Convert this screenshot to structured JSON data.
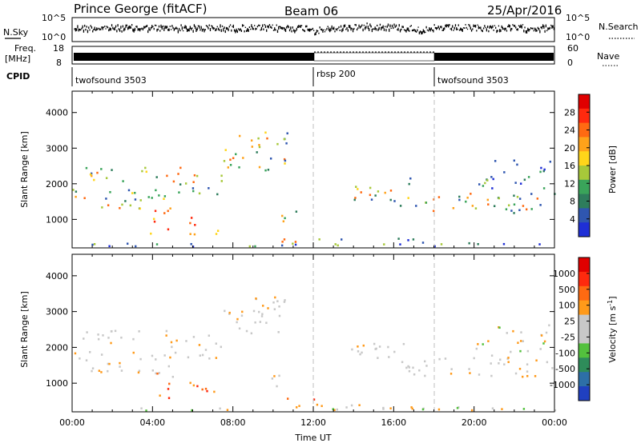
{
  "header": {
    "station": "Prince George (fitACF)",
    "beam": "Beam 06",
    "date": "25/Apr/2016"
  },
  "noise_panel": {
    "left_label": "N.Sky",
    "right_label": "N.Search",
    "ticks": [
      "10^5",
      "10^0"
    ]
  },
  "freq_panel": {
    "left_label_line1": "Freq.",
    "left_label_line2": "[MHz]",
    "left_ticks": [
      "18",
      "8"
    ],
    "right_label": "Nave",
    "right_ticks": [
      "60",
      "0"
    ]
  },
  "cpid_panel": {
    "label": "CPID",
    "segments": [
      {
        "name": "twofsound 3503",
        "start_hour": 0
      },
      {
        "name": "rbsp 200",
        "start_hour": 12
      },
      {
        "name": "twofsound 3503",
        "start_hour": 18
      }
    ]
  },
  "chart_data": [
    {
      "type": "heatmap",
      "quantity": "power",
      "xlabel": "",
      "ylabel": "Slant Range [km]",
      "xlim": [
        0,
        24
      ],
      "ylim": [
        200,
        4600
      ],
      "yticks": [
        "1000",
        "2000",
        "3000",
        "4000"
      ],
      "colorbar": {
        "label": "Power [dB]",
        "ticks": [
          "4",
          "8",
          "12",
          "16",
          "20",
          "24",
          "28"
        ],
        "colors": [
          "#1f2fd6",
          "#2f56b0",
          "#2e7d5c",
          "#3aa45a",
          "#a7c83a",
          "#ffd51a",
          "#ffa21a",
          "#ff6a12",
          "#ff2a0e",
          "#e00000"
        ]
      }
    },
    {
      "type": "heatmap",
      "quantity": "velocity",
      "xlabel": "Time UT",
      "ylabel": "Slant Range [km]",
      "xlim": [
        0,
        24
      ],
      "ylim": [
        200,
        4600
      ],
      "xticks": [
        "00:00",
        "04:00",
        "08:00",
        "12:00",
        "16:00",
        "20:00",
        "00:00"
      ],
      "yticks": [
        "1000",
        "2000",
        "3000",
        "4000"
      ],
      "colorbar": {
        "label": "Velocity [m s",
        "label_sup": "-1",
        "label_end": "]",
        "ticks": [
          "1000",
          "500",
          "100",
          "25",
          "-25",
          "-100",
          "-500",
          "-1000"
        ],
        "colors": [
          "#2040c0",
          "#2d6fa7",
          "#2e8c5a",
          "#53c13d",
          "#c8c8c8",
          "#c8c8c8",
          "#ff9a1a",
          "#ff6a12",
          "#ff2a0e",
          "#e00000"
        ]
      }
    }
  ],
  "colors": {
    "divider": "#bfbfbf",
    "ground_scatter": "#c8c8c8"
  }
}
